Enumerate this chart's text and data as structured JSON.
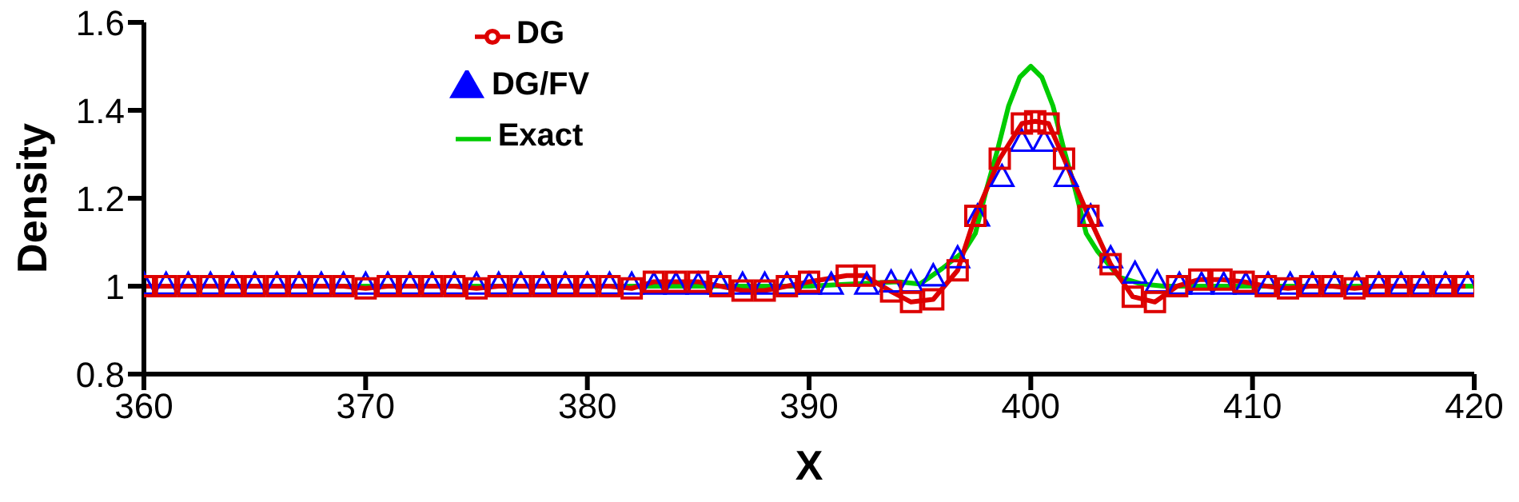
{
  "chart_data": {
    "type": "line",
    "xlabel": "X",
    "ylabel": "Density",
    "xlim": [
      360,
      420
    ],
    "xticks": [
      360,
      370,
      380,
      390,
      400,
      410,
      420
    ],
    "ylim": [
      0.8,
      1.6
    ],
    "yticks": [
      0.8,
      1,
      1.2,
      1.4,
      1.6
    ],
    "grid": false,
    "legend": "top left",
    "series": [
      {
        "name": "Exact",
        "color": "#00cc00",
        "marker": "none",
        "x": [
          360,
          390,
          394,
          395,
          396,
          397,
          397.5,
          398,
          398.5,
          399,
          399.5,
          400,
          400.5,
          401,
          401.5,
          402,
          402.5,
          403,
          404,
          405,
          406,
          410,
          420
        ],
        "values": [
          1,
          1,
          1.01,
          1.005,
          1.04,
          1.08,
          1.12,
          1.22,
          1.31,
          1.41,
          1.475,
          1.5,
          1.475,
          1.41,
          1.31,
          1.22,
          1.12,
          1.08,
          1.02,
          1.005,
          1,
          1,
          1
        ]
      },
      {
        "name": "DG",
        "color": "#dd0000",
        "marker": "square",
        "x": [
          360,
          361,
          362,
          363,
          364,
          365,
          366,
          367,
          368,
          369,
          370,
          371,
          372,
          373,
          374,
          375,
          376,
          377,
          378,
          379,
          380,
          381,
          382,
          383,
          384,
          385,
          386,
          387,
          388,
          389,
          390,
          391.7,
          392.5,
          393.7,
          394.6,
          395.6,
          396.7,
          397.5,
          398.6,
          399.6,
          400.2,
          400.8,
          401.5,
          402.6,
          403.6,
          404.6,
          405.6,
          406.6,
          407.6,
          408.6,
          409.6,
          410.6,
          411.6,
          412.6,
          413.6,
          414.6,
          415.6,
          416.6,
          417.6,
          418.6,
          419.6
        ],
        "values": [
          1,
          1,
          1,
          1,
          1,
          1,
          1,
          1,
          1,
          1,
          0.995,
          1,
          1,
          1,
          1,
          0.995,
          1,
          1,
          1,
          1,
          1,
          1,
          0.995,
          1.01,
          1.01,
          1.01,
          1,
          0.99,
          0.99,
          1,
          1.01,
          1.024,
          1.024,
          0.988,
          0.964,
          0.97,
          1.036,
          1.16,
          1.29,
          1.37,
          1.375,
          1.37,
          1.29,
          1.16,
          1.05,
          0.976,
          0.964,
          1,
          1.015,
          1.015,
          1.01,
          1,
          0.995,
          1,
          1,
          0.995,
          1,
          1,
          1,
          1,
          1
        ]
      },
      {
        "name": "DG/FV",
        "type": "scatter",
        "color": "#0000ff",
        "marker": "triangle",
        "x": [
          360,
          361,
          362,
          363,
          364,
          365,
          366,
          367,
          368,
          369,
          370,
          371,
          372,
          373,
          374,
          375,
          376,
          377,
          378,
          379,
          380,
          381,
          382,
          383,
          384,
          385,
          386,
          387,
          388,
          389,
          390,
          391,
          392.6,
          393.7,
          394.6,
          395.6,
          396.7,
          397.6,
          398.7,
          399.6,
          400.6,
          401.6,
          402.7,
          403.6,
          404.7,
          405.7,
          406.7,
          407.7,
          408.7,
          409.7,
          410.7,
          411.7,
          412.7,
          413.7,
          414.7,
          415.7,
          416.7,
          417.7,
          418.7,
          419.7
        ],
        "values": [
          1.005,
          1.005,
          1.005,
          1.005,
          1.005,
          1.005,
          1.005,
          1.005,
          1.005,
          1.005,
          1.005,
          1.005,
          1.005,
          1.005,
          1.005,
          1.005,
          1.005,
          1.005,
          1.005,
          1.005,
          1.005,
          1.005,
          1.005,
          1.005,
          1.005,
          1.005,
          1.005,
          1.005,
          1.005,
          1.005,
          1.005,
          1.005,
          1.005,
          1.01,
          1.01,
          1.024,
          1.065,
          1.16,
          1.25,
          1.33,
          1.33,
          1.25,
          1.16,
          1.065,
          1.03,
          1.01,
          1.005,
          1.005,
          1.005,
          1.005,
          1.005,
          1.005,
          1.005,
          1.005,
          1.005,
          1.005,
          1.005,
          1.005,
          1.005,
          1.005
        ]
      }
    ]
  }
}
